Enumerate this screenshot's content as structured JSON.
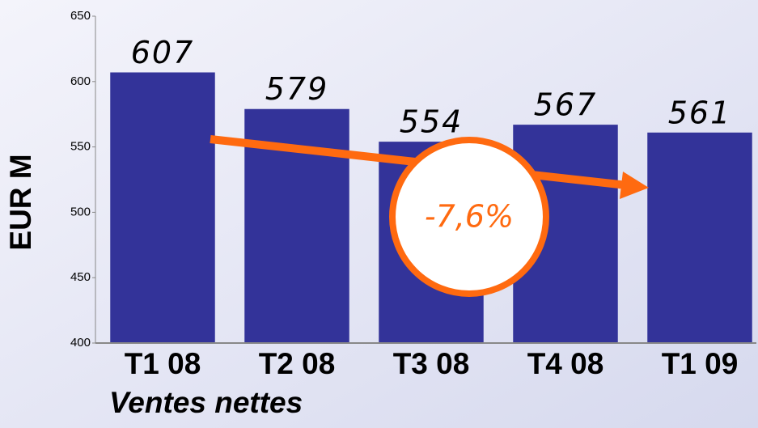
{
  "chart_data": {
    "type": "bar",
    "categories": [
      "T1 08",
      "T2 08",
      "T3 08",
      "T4 08",
      "T1 09"
    ],
    "values": [
      607,
      579,
      554,
      567,
      561
    ],
    "color": "#333399",
    "ylim": [
      400,
      650
    ],
    "yticks": [
      400,
      450,
      500,
      550,
      600,
      650
    ],
    "xlabel": "Ventes nettes",
    "ylabel": "EUR M",
    "annotation": "-7,6%",
    "annotation_color": "#ff6a10"
  }
}
